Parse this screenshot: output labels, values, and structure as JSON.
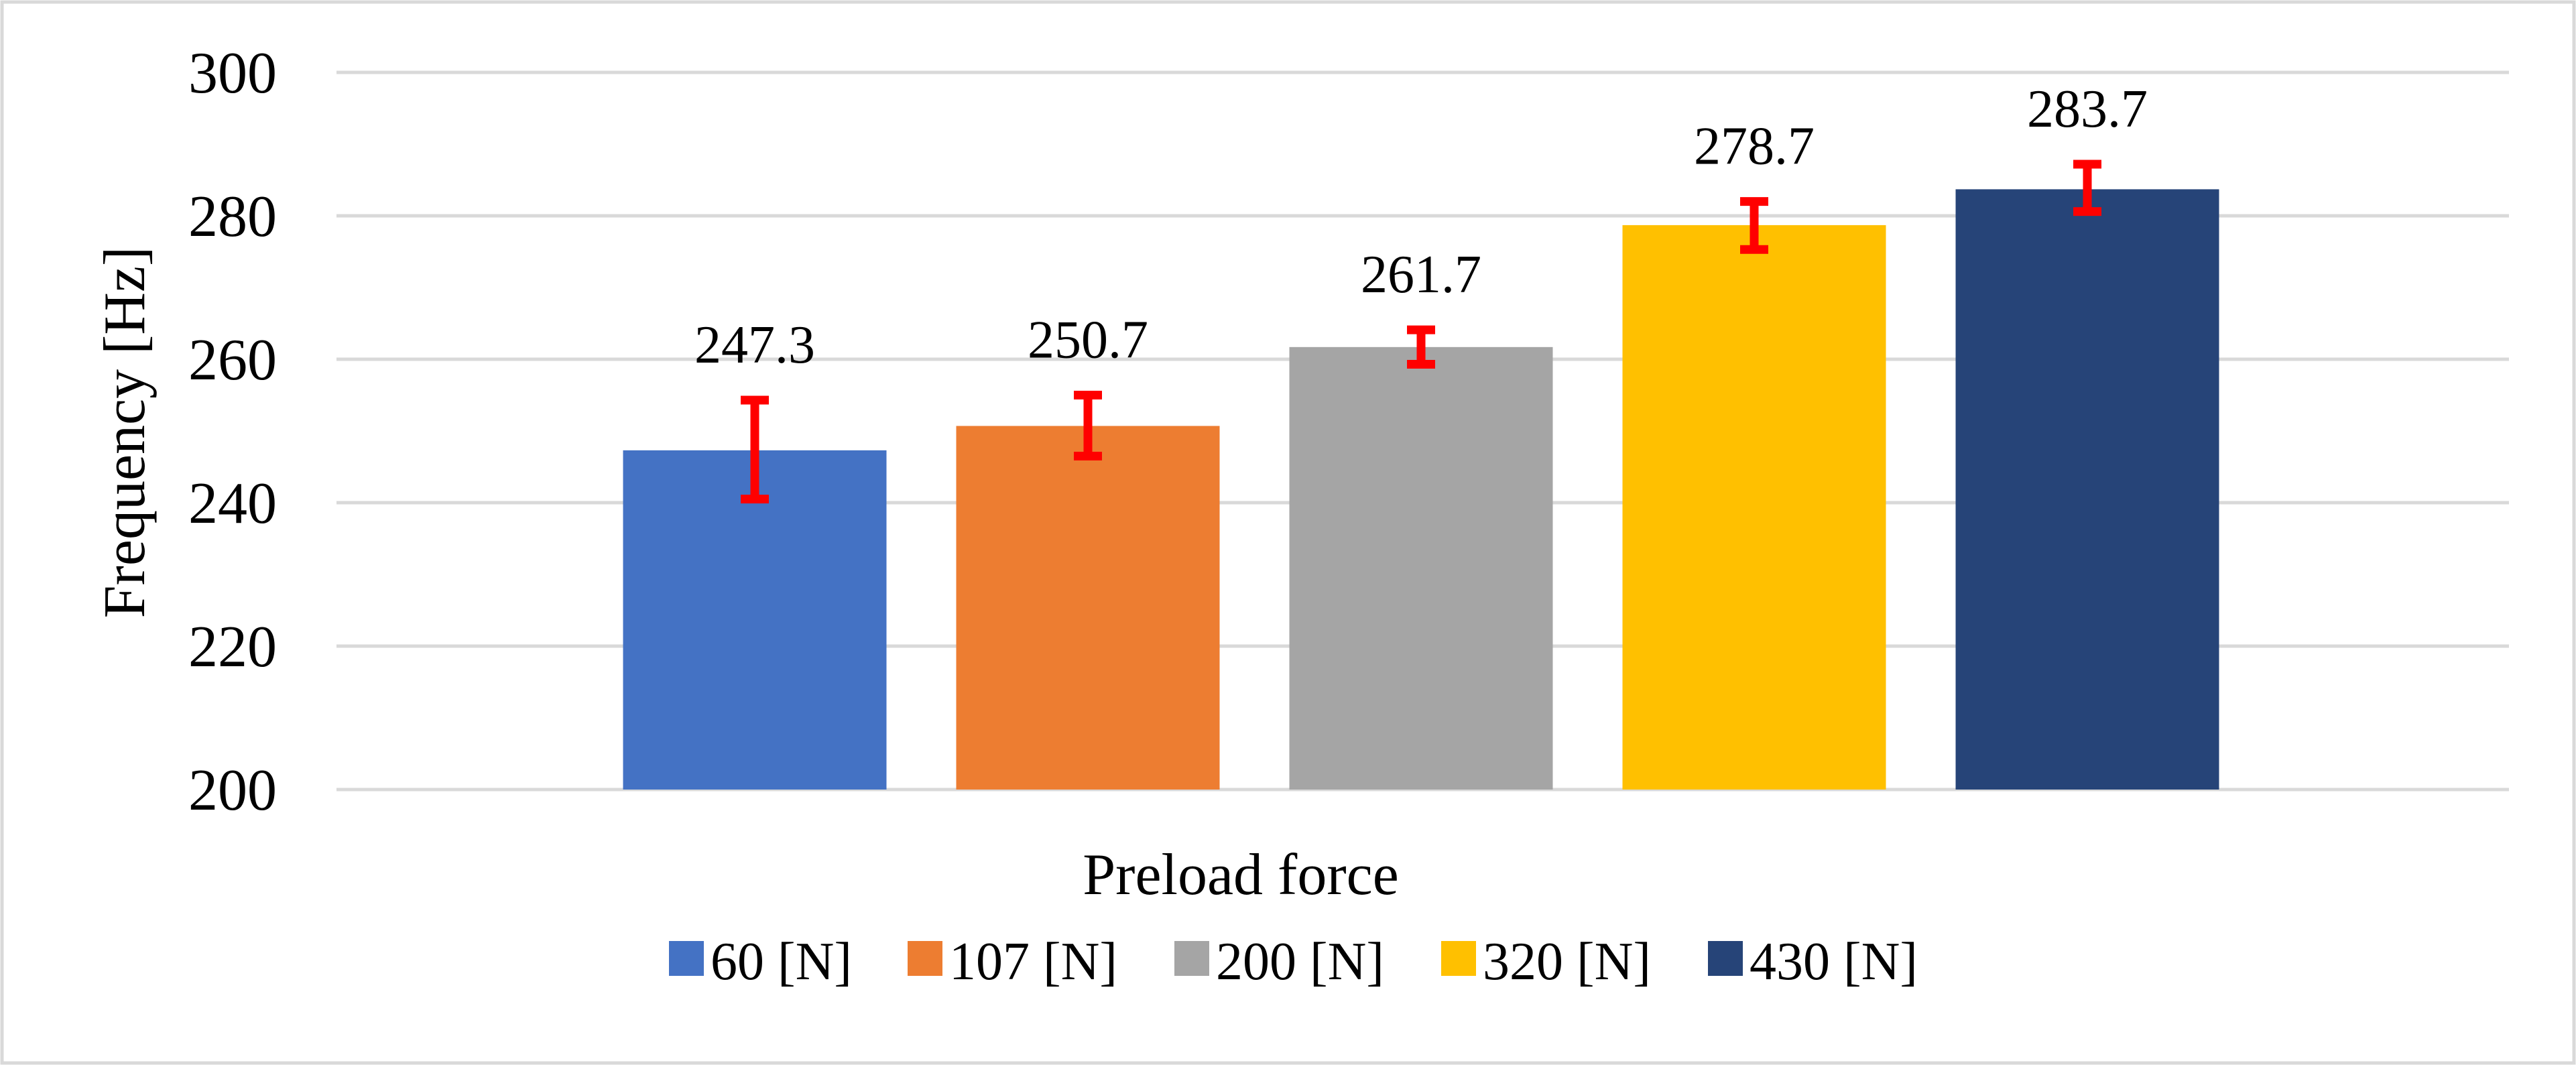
{
  "chart_data": {
    "type": "bar",
    "title": "",
    "xlabel": "Preload force",
    "ylabel": "Frequency [Hz]",
    "ylim": [
      200,
      300
    ],
    "yticks": [
      200,
      220,
      240,
      260,
      280,
      300
    ],
    "grid": true,
    "legend_position": "bottom",
    "series": [
      {
        "name": "60 [N]",
        "value": 247.3,
        "label": "247.3",
        "error_low": 240.5,
        "error_high": 254.3,
        "color": "#4472C4"
      },
      {
        "name": "107 [N]",
        "value": 250.7,
        "label": "250.7",
        "error_low": 246.5,
        "error_high": 255.0,
        "color": "#ED7D31"
      },
      {
        "name": "200 [N]",
        "value": 261.7,
        "label": "261.7",
        "error_low": 259.3,
        "error_high": 264.1,
        "color": "#A5A5A5"
      },
      {
        "name": "320 [N]",
        "value": 278.7,
        "label": "278.7",
        "error_low": 275.3,
        "error_high": 282.0,
        "color": "#FFC000"
      },
      {
        "name": "430 [N]",
        "value": 283.7,
        "label": "283.7",
        "error_low": 280.6,
        "error_high": 287.2,
        "color": "#264478"
      }
    ],
    "error_bar_color": "#FF0000",
    "gridline_color": "#D9D9D9",
    "frame_color": "#D9D9D9"
  }
}
